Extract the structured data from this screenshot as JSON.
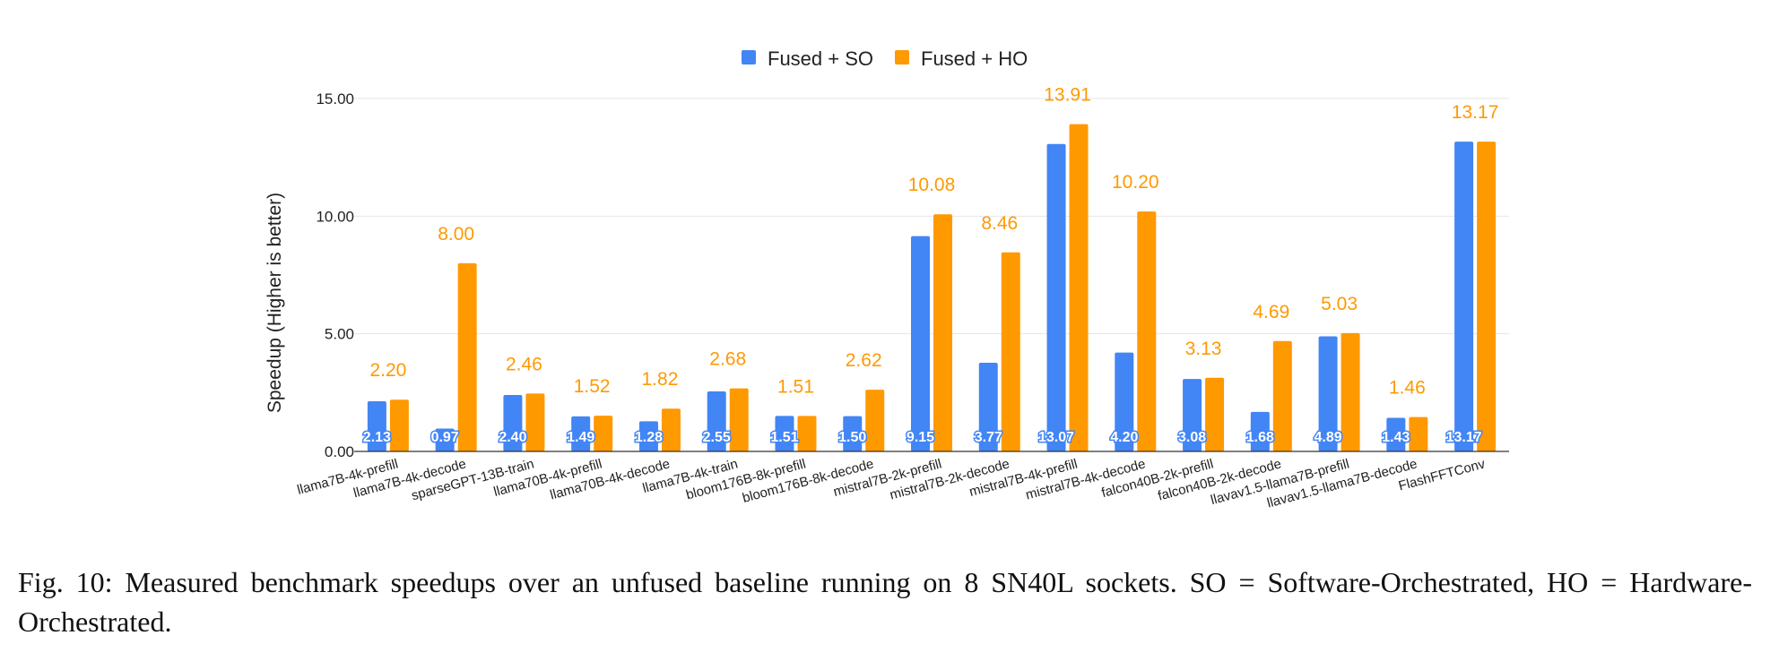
{
  "legend": {
    "so": "Fused + SO",
    "ho": "Fused + HO"
  },
  "colors": {
    "so": "#4285f4",
    "ho": "#ff9900",
    "grid": "#e6e6e6",
    "axis": "#333333"
  },
  "caption": "Fig. 10: Measured benchmark speedups over an unfused baseline running on 8 SN40L sockets. SO = Software-Orchestrated, HO = Hardware-Orchestrated.",
  "chart_data": {
    "type": "bar",
    "title": "",
    "xlabel": "",
    "ylabel": "Speedup (Higher is better)",
    "ylim": [
      0,
      15
    ],
    "yticks": [
      "0.00",
      "5.00",
      "10.00",
      "15.00"
    ],
    "grid": true,
    "legend_position": "top-center",
    "categories": [
      "llama7B-4k-prefill",
      "llama7B-4k-decode",
      "sparseGPT-13B-train",
      "llama70B-4k-prefill",
      "llama70B-4k-decode",
      "llama7B-4k-train",
      "bloom176B-8k-prefill",
      "bloom176B-8k-decode",
      "mistral7B-2k-prefill",
      "mistral7B-2k-decode",
      "mistral7B-4k-prefill",
      "mistral7B-4k-decode",
      "falcon40B-2k-prefill",
      "falcon40B-2k-decode",
      "llavav1.5-llama7B-prefill",
      "llavav1.5-llama7B-decode",
      "FlashFFTConv"
    ],
    "series": [
      {
        "name": "Fused + SO",
        "values": [
          2.13,
          0.97,
          2.4,
          1.49,
          1.28,
          2.55,
          1.51,
          1.5,
          9.15,
          3.77,
          13.07,
          4.2,
          3.08,
          1.68,
          4.89,
          1.43,
          13.17
        ],
        "labels": [
          "2.13",
          "0.97",
          "2.40",
          "1.49",
          "1.28",
          "2.55",
          "1.51",
          "1.50",
          "9.15",
          "3.77",
          "13.07",
          "4.20",
          "3.08",
          "1.68",
          "4.89",
          "1.43",
          "13.17"
        ]
      },
      {
        "name": "Fused + HO",
        "values": [
          2.2,
          8.0,
          2.46,
          1.52,
          1.82,
          2.68,
          1.51,
          2.62,
          10.08,
          8.46,
          13.91,
          10.2,
          3.13,
          4.69,
          5.03,
          1.46,
          13.17
        ],
        "labels": [
          "2.20",
          "8.00",
          "2.46",
          "1.52",
          "1.82",
          "2.68",
          "1.51",
          "2.62",
          "10.08",
          "8.46",
          "13.91",
          "10.20",
          "3.13",
          "4.69",
          "5.03",
          "1.46",
          "13.17"
        ]
      }
    ]
  }
}
